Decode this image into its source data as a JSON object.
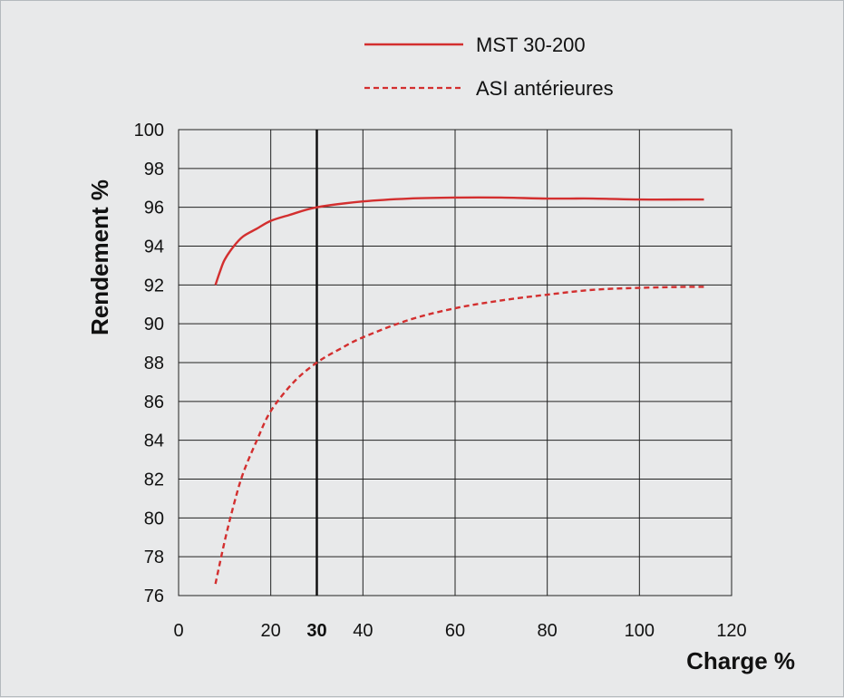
{
  "colors": {
    "background": "#e8e9ea",
    "series": "#d32f2f",
    "grid": "#222222",
    "highlight": "#111111"
  },
  "chart_data": {
    "type": "line",
    "title": "",
    "xlabel": "Charge %",
    "ylabel": "Rendement %",
    "xlim": [
      0,
      120
    ],
    "ylim": [
      76,
      100
    ],
    "grid": true,
    "legend_position": "top-right",
    "x_ticks": [
      "0",
      "20",
      "30",
      "40",
      "60",
      "80",
      "100",
      "120"
    ],
    "y_ticks": [
      "76",
      "78",
      "80",
      "82",
      "84",
      "86",
      "88",
      "90",
      "92",
      "94",
      "96",
      "98",
      "100"
    ],
    "highlight_x": 30,
    "highlight_label": "30",
    "series": [
      {
        "name": "MST 30-200",
        "style": "solid",
        "x": [
          8,
          9,
          10,
          12,
          14,
          17,
          20,
          24,
          30,
          40,
          50,
          60,
          70,
          80,
          90,
          100,
          110,
          114
        ],
        "y": [
          92.0,
          92.7,
          93.3,
          94.0,
          94.5,
          94.9,
          95.3,
          95.6,
          96.0,
          96.3,
          96.45,
          96.5,
          96.5,
          96.45,
          96.45,
          96.4,
          96.4,
          96.4
        ]
      },
      {
        "name": "ASI antérieures",
        "style": "dashed",
        "x": [
          8,
          10,
          12,
          14,
          17,
          20,
          25,
          30,
          35,
          40,
          50,
          60,
          70,
          80,
          90,
          100,
          110,
          114
        ],
        "y": [
          76.6,
          78.8,
          80.7,
          82.3,
          84.0,
          85.5,
          87.0,
          88.0,
          88.7,
          89.3,
          90.2,
          90.8,
          91.2,
          91.5,
          91.75,
          91.85,
          91.9,
          91.9
        ]
      }
    ]
  }
}
